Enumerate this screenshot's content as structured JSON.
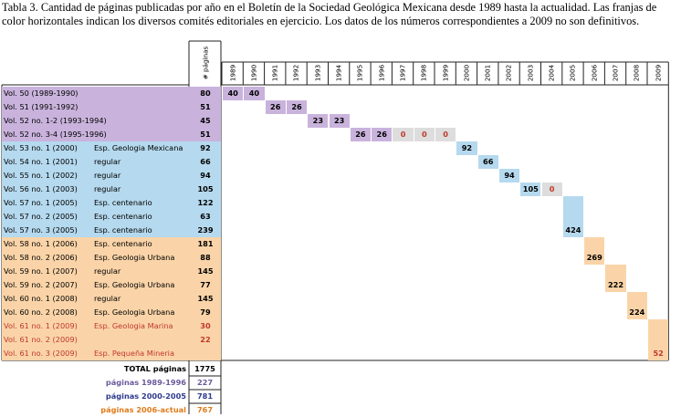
{
  "caption": "Tabla 3. Cantidad de páginas publicadas por año en el Boletín de la Sociedad Geológica Mexicana desde 1989 hasta la actualidad. Las franjas de color horizontales indican los diversos comités editoriales en ejercicio. Los datos de los números correspondientes a 2009 no son definitivos.",
  "column_header_pages": "# páginas",
  "years": [
    "1989",
    "1990",
    "1991",
    "1992",
    "1993",
    "1994",
    "1995",
    "1996",
    "1997",
    "1998",
    "1999",
    "2000",
    "2001",
    "2002",
    "2003",
    "2004",
    "2005",
    "2006",
    "2007",
    "2008",
    "2009"
  ],
  "colors": {
    "purple": "#c9b3dc",
    "blue": "#b5d9ee",
    "orange": "#fad4a8",
    "gray": "#dddddd",
    "red_text": "#c0392b",
    "dark_purple_text": "#6a5a9c",
    "navy_text": "#2e3b8e",
    "orange_text": "#e07b1a"
  },
  "rows": [
    {
      "label": "Vol. 50 (1989-1990)",
      "type": "",
      "pages": "80",
      "band": "purple",
      "red": false
    },
    {
      "label": "Vol. 51 (1991-1992)",
      "type": "",
      "pages": "51",
      "band": "purple",
      "red": false
    },
    {
      "label": "Vol. 52 no. 1-2 (1993-1994)",
      "type": "",
      "pages": "45",
      "band": "purple",
      "red": false
    },
    {
      "label": "Vol. 52 no. 3-4 (1995-1996)",
      "type": "",
      "pages": "51",
      "band": "purple",
      "red": false
    },
    {
      "label": "Vol. 53 no. 1 (2000)",
      "type": "Esp. Geologia Mexicana",
      "pages": "92",
      "band": "blue",
      "red": false
    },
    {
      "label": "Vol. 54 no. 1 (2001)",
      "type": "regular",
      "pages": "66",
      "band": "blue",
      "red": false
    },
    {
      "label": "Vol. 55 no. 1 (2002)",
      "type": "regular",
      "pages": "94",
      "band": "blue",
      "red": false
    },
    {
      "label": "Vol. 56 no. 1 (2003)",
      "type": "regular",
      "pages": "105",
      "band": "blue",
      "red": false
    },
    {
      "label": "Vol. 57 no. 1 (2005)",
      "type": "Esp. centenario",
      "pages": "122",
      "band": "blue",
      "red": false
    },
    {
      "label": "Vol. 57 no. 2 (2005)",
      "type": "Esp. centenario",
      "pages": "63",
      "band": "blue",
      "red": false
    },
    {
      "label": "Vol. 57 no. 3 (2005)",
      "type": "Esp. centenario",
      "pages": "239",
      "band": "blue",
      "red": false
    },
    {
      "label": "Vol. 58 no. 1 (2006)",
      "type": "Esp. centenario",
      "pages": "181",
      "band": "orange",
      "red": false
    },
    {
      "label": "Vol. 58 no. 2 (2006)",
      "type": "Esp. Geologia Urbana",
      "pages": "88",
      "band": "orange",
      "red": false
    },
    {
      "label": "Vol. 59 no. 1 (2007)",
      "type": "regular",
      "pages": "145",
      "band": "orange",
      "red": false
    },
    {
      "label": "Vol. 59 no. 2 (2007)",
      "type": "Esp. Geologia Urbana",
      "pages": "77",
      "band": "orange",
      "red": false
    },
    {
      "label": "Vol. 60 no. 1 (2008)",
      "type": "regular",
      "pages": "145",
      "band": "orange",
      "red": false
    },
    {
      "label": "Vol. 60 no. 2 (2008)",
      "type": "Esp. Geologia Urbana",
      "pages": "79",
      "band": "orange",
      "red": false
    },
    {
      "label": "Vol. 61 no. 1 (2009)",
      "type": "Esp. Geologia Marina",
      "pages": "30",
      "band": "orange",
      "red": true
    },
    {
      "label": "Vol. 61 no. 2 (2009)",
      "type": "",
      "pages": "22",
      "band": "orange",
      "red": true
    },
    {
      "label": "Vol. 61 no. 3 (2009)",
      "type": "Esp. Pequeña Mineria",
      "pages": "",
      "band": "orange",
      "red": true
    }
  ],
  "year_cells": [
    {
      "row": 0,
      "year": 0,
      "span": 1,
      "rowspan": 1,
      "value": "40",
      "fill": "purple",
      "red": false
    },
    {
      "row": 0,
      "year": 1,
      "span": 1,
      "rowspan": 1,
      "value": "40",
      "fill": "purple",
      "red": false
    },
    {
      "row": 1,
      "year": 2,
      "span": 1,
      "rowspan": 1,
      "value": "26",
      "fill": "purple",
      "red": false
    },
    {
      "row": 1,
      "year": 3,
      "span": 1,
      "rowspan": 1,
      "value": "26",
      "fill": "purple",
      "red": false
    },
    {
      "row": 2,
      "year": 4,
      "span": 1,
      "rowspan": 1,
      "value": "23",
      "fill": "purple",
      "red": false
    },
    {
      "row": 2,
      "year": 5,
      "span": 1,
      "rowspan": 1,
      "value": "23",
      "fill": "purple",
      "red": false
    },
    {
      "row": 3,
      "year": 6,
      "span": 1,
      "rowspan": 1,
      "value": "26",
      "fill": "purple",
      "red": false
    },
    {
      "row": 3,
      "year": 7,
      "span": 1,
      "rowspan": 1,
      "value": "26",
      "fill": "purple",
      "red": false
    },
    {
      "row": 3,
      "year": 8,
      "span": 1,
      "rowspan": 1,
      "value": "0",
      "fill": "gray",
      "red": true
    },
    {
      "row": 3,
      "year": 9,
      "span": 1,
      "rowspan": 1,
      "value": "0",
      "fill": "gray",
      "red": true
    },
    {
      "row": 3,
      "year": 10,
      "span": 1,
      "rowspan": 1,
      "value": "0",
      "fill": "gray",
      "red": true
    },
    {
      "row": 4,
      "year": 11,
      "span": 1,
      "rowspan": 1,
      "value": "92",
      "fill": "blue",
      "red": false
    },
    {
      "row": 5,
      "year": 12,
      "span": 1,
      "rowspan": 1,
      "value": "66",
      "fill": "blue",
      "red": false
    },
    {
      "row": 6,
      "year": 13,
      "span": 1,
      "rowspan": 1,
      "value": "94",
      "fill": "blue",
      "red": false
    },
    {
      "row": 7,
      "year": 14,
      "span": 1,
      "rowspan": 1,
      "value": "105",
      "fill": "blue",
      "red": false
    },
    {
      "row": 7,
      "year": 15,
      "span": 1,
      "rowspan": 1,
      "value": "0",
      "fill": "gray",
      "red": true
    },
    {
      "row": 8,
      "year": 16,
      "span": 1,
      "rowspan": 3,
      "value": "424",
      "fill": "blue",
      "red": false
    },
    {
      "row": 11,
      "year": 17,
      "span": 1,
      "rowspan": 2,
      "value": "269",
      "fill": "orange",
      "red": false
    },
    {
      "row": 13,
      "year": 18,
      "span": 1,
      "rowspan": 2,
      "value": "222",
      "fill": "orange",
      "red": false
    },
    {
      "row": 15,
      "year": 19,
      "span": 1,
      "rowspan": 2,
      "value": "224",
      "fill": "orange",
      "red": false
    },
    {
      "row": 17,
      "year": 20,
      "span": 1,
      "rowspan": 3,
      "value": "52",
      "fill": "orange",
      "red": true
    }
  ],
  "summary": [
    {
      "label": "TOTAL páginas",
      "value": "1775",
      "color": "#000000"
    },
    {
      "label": "páginas 1989-1996",
      "value": "227",
      "color": "#6a5a9c"
    },
    {
      "label": "páginas 2000-2005",
      "value": "781",
      "color": "#2e3b8e"
    },
    {
      "label": "páginas 2006-actual",
      "value": "767",
      "color": "#e07b1a"
    }
  ]
}
